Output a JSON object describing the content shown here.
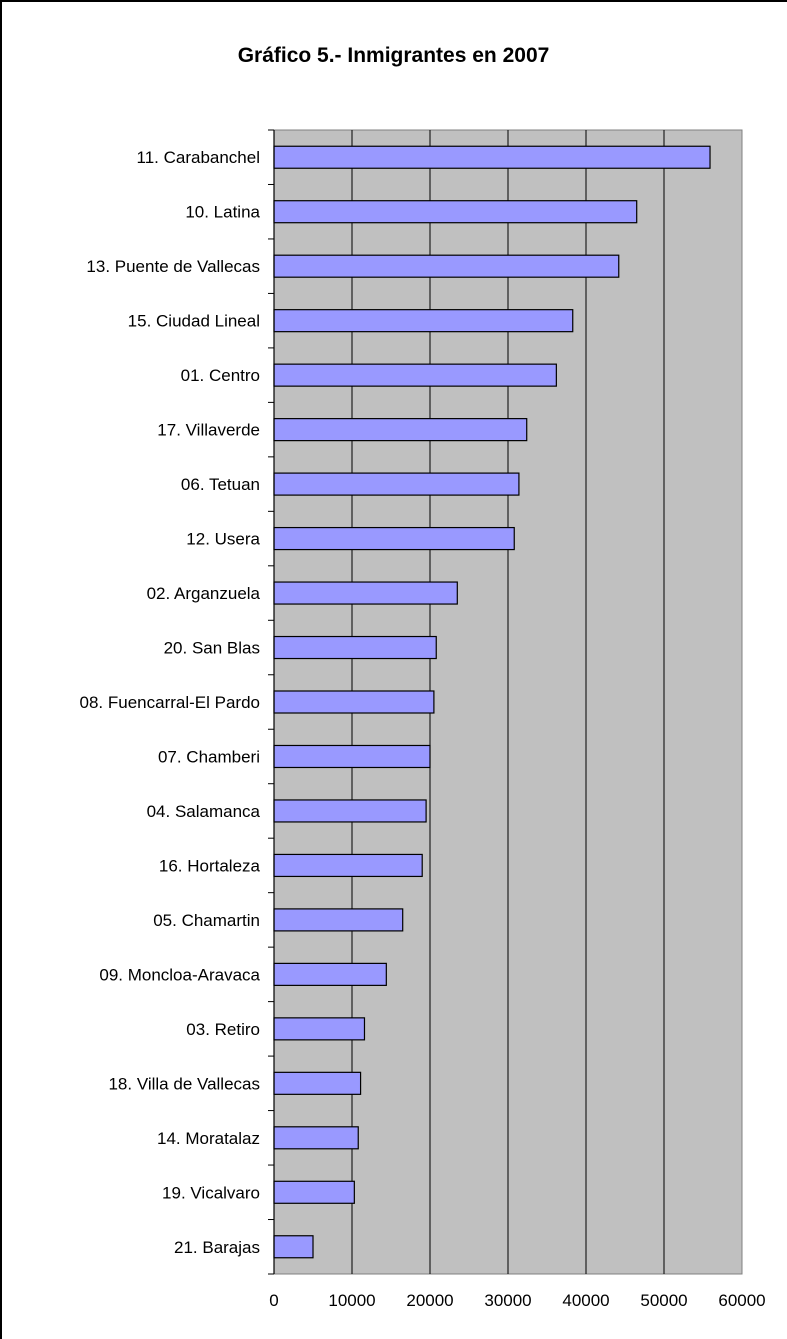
{
  "chart_data": {
    "type": "bar",
    "orientation": "horizontal",
    "title": "Gráfico 5.- Inmigrantes en 2007",
    "xlabel": "",
    "ylabel": "",
    "xlim": [
      0,
      60000
    ],
    "x_ticks": [
      "0",
      "10000",
      "20000",
      "30000",
      "40000",
      "50000",
      "60000"
    ],
    "grid": true,
    "legend": "none",
    "bar_color": "#9999ff",
    "plot_background": "#c0c0c0",
    "categories": [
      "11. Carabanchel",
      "10. Latina",
      "13. Puente de Vallecas",
      "15. Ciudad Lineal",
      "01. Centro",
      "17. Villaverde",
      "06. Tetuan",
      "12. Usera",
      "02. Arganzuela",
      "20. San Blas",
      "08. Fuencarral-El Pardo",
      "07. Chamberi",
      "04. Salamanca",
      "16. Hortaleza",
      "05. Chamartin",
      "09. Moncloa-Aravaca",
      "03. Retiro",
      "18. Villa de Vallecas",
      "14. Moratalaz",
      "19. Vicalvaro",
      "21. Barajas"
    ],
    "values": [
      55900,
      46500,
      44200,
      38300,
      36200,
      32400,
      31400,
      30800,
      23500,
      20800,
      20500,
      20000,
      19500,
      19000,
      16500,
      14400,
      11600,
      11100,
      10800,
      10300,
      5000
    ]
  }
}
